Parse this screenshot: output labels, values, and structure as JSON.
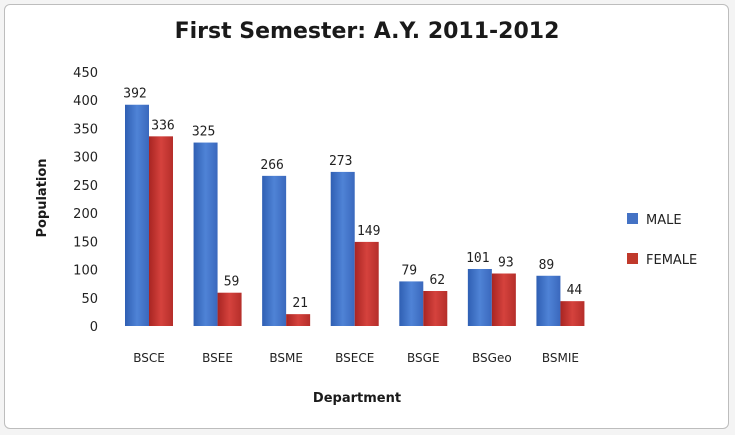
{
  "chart_data": {
    "type": "bar",
    "title": "First Semester: A.Y. 2011-2012",
    "xlabel": "Department",
    "ylabel": "Population",
    "ylim": [
      0,
      450
    ],
    "yticks": [
      0,
      50,
      100,
      150,
      200,
      250,
      300,
      350,
      400,
      450
    ],
    "grid": false,
    "legend_position": "right",
    "categories": [
      "BSCE",
      "BSEE",
      "BSME",
      "BSECE",
      "BSGE",
      "BSGeo",
      "BSMIE"
    ],
    "series": [
      {
        "name": "MALE",
        "color": "#4472c4",
        "values": [
          392,
          325,
          266,
          273,
          79,
          101,
          89
        ]
      },
      {
        "name": "FEMALE",
        "color": "#c0392b",
        "values": [
          336,
          59,
          21,
          149,
          62,
          93,
          44
        ]
      }
    ]
  }
}
